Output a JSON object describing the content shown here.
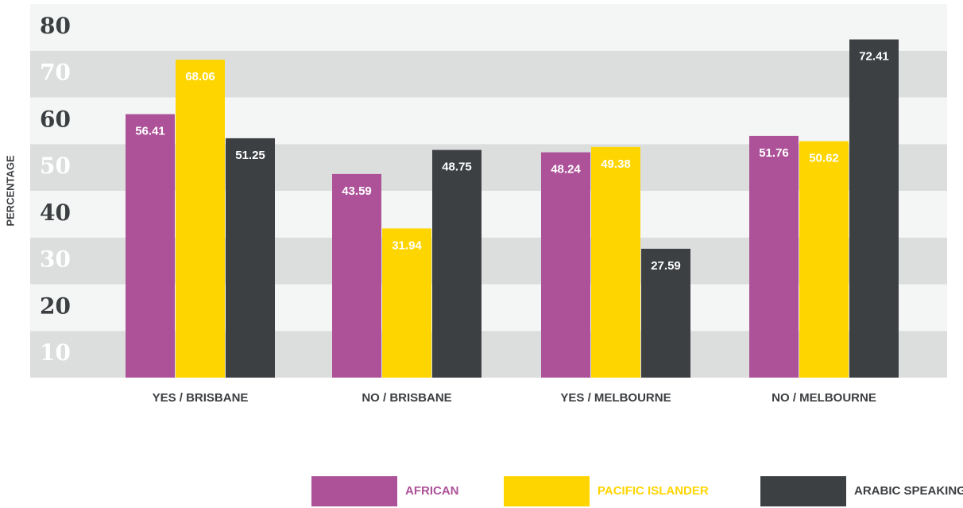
{
  "chart_data": {
    "type": "bar",
    "y_label": "PERCENTAGE",
    "categories": [
      "YES / BRISBANE",
      "NO / BRISBANE",
      "YES / MELBOURNE",
      "NO / MELBOURNE"
    ],
    "series": [
      {
        "name": "AFRICAN",
        "color": "#ad5299",
        "values": [
          56.41,
          43.59,
          48.24,
          51.76
        ]
      },
      {
        "name": "PACIFIC ISLANDER",
        "color": "#ffd500",
        "values": [
          68.06,
          31.94,
          49.38,
          50.62
        ]
      },
      {
        "name": "ARABIC SPEAKING",
        "color": "#3d4043",
        "values": [
          51.25,
          48.75,
          27.59,
          72.41
        ]
      }
    ],
    "ylim": [
      0,
      80
    ],
    "yticks": [
      10,
      20,
      30,
      40,
      50,
      60,
      70,
      80
    ],
    "grid": true,
    "legend": "bottom"
  }
}
